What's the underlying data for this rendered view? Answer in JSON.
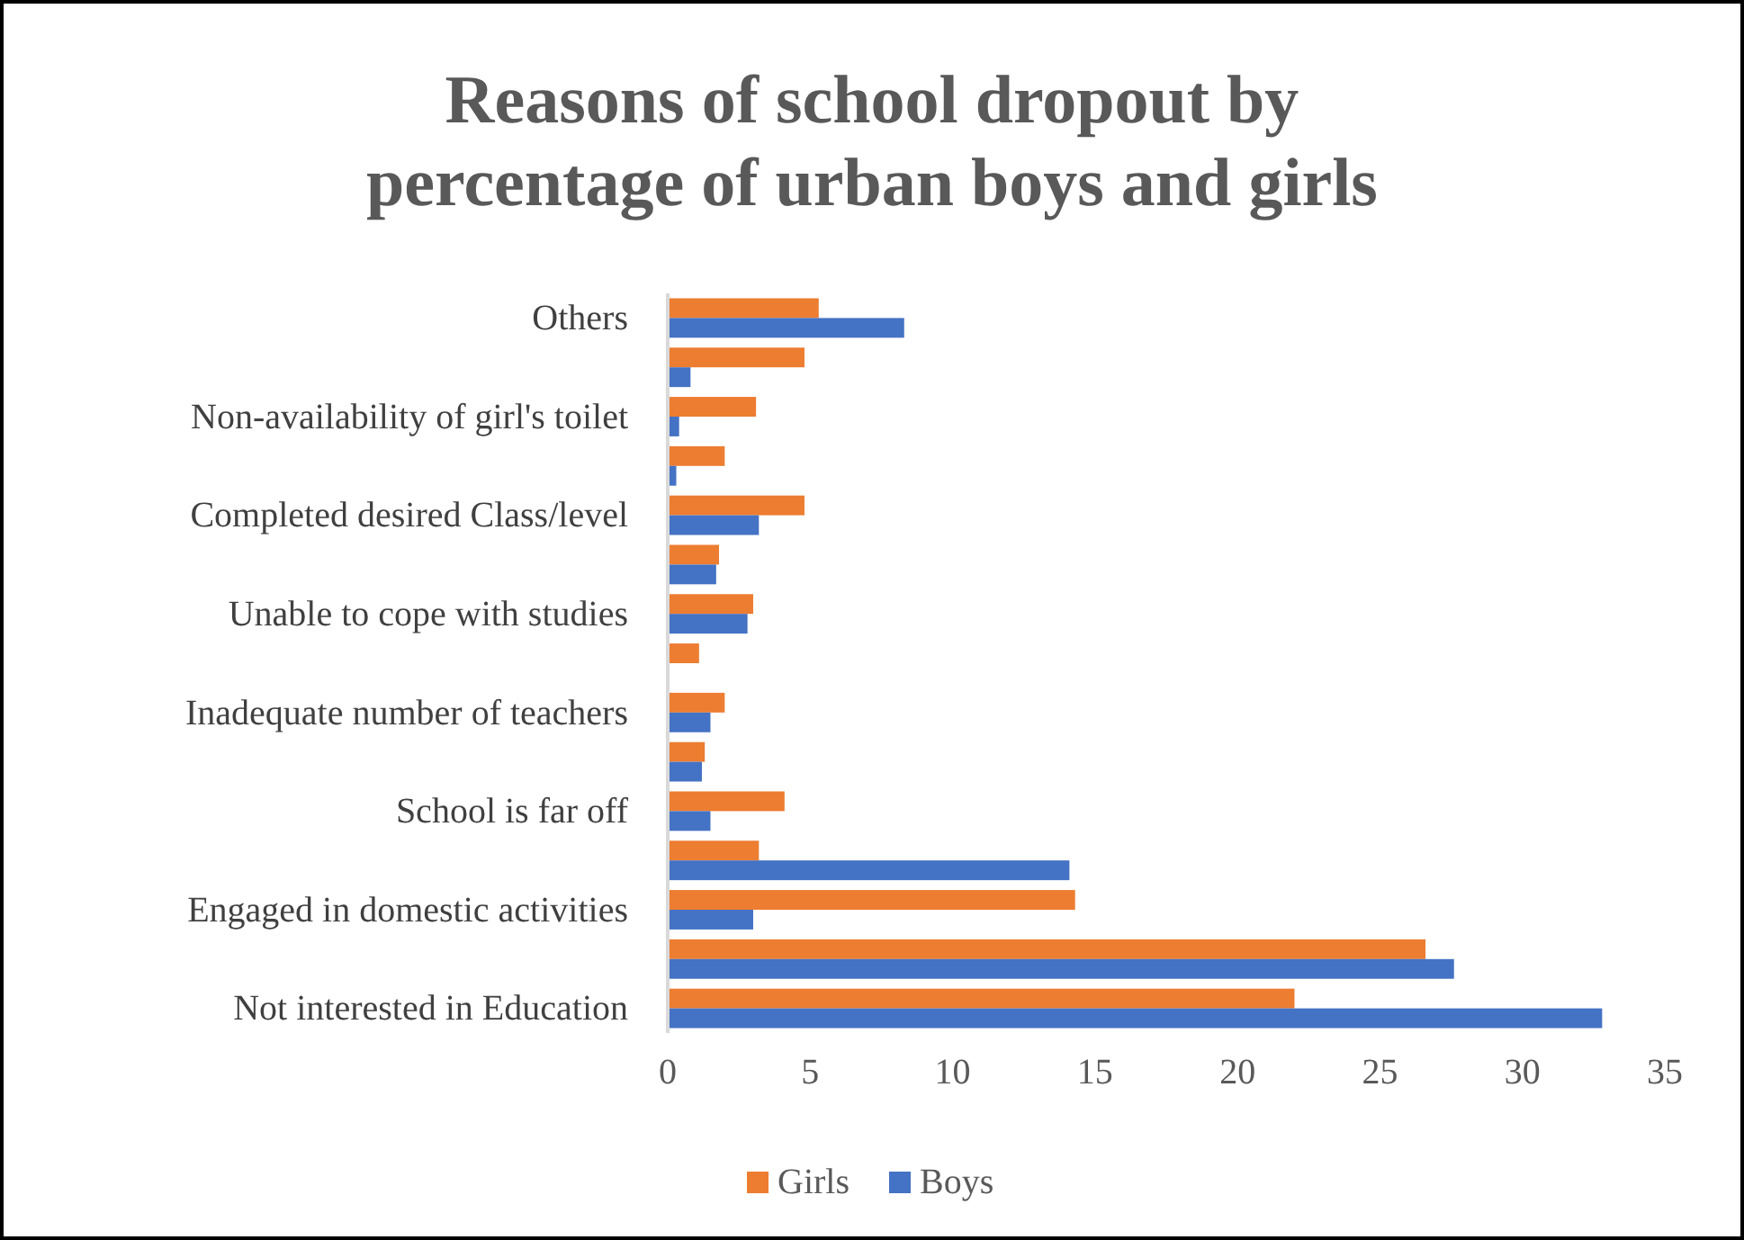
{
  "chart_data": {
    "type": "bar",
    "orientation": "horizontal",
    "title": "Reasons of school dropout by percentage of urban boys and girls",
    "categories": [
      "Others",
      null,
      "Non-availability of girl's toilet",
      null,
      "Completed desired Class/level",
      null,
      "Unable to cope with studies",
      null,
      "Inadequate number of teachers",
      null,
      "School is far off",
      null,
      "Engaged in domestic activities",
      null,
      "Not interested in Education"
    ],
    "series": [
      {
        "name": "Girls",
        "color": "#ed7d31",
        "values": [
          5.3,
          4.8,
          3.1,
          2.0,
          4.8,
          1.8,
          3.0,
          1.1,
          2.0,
          1.3,
          4.1,
          3.2,
          14.3,
          26.6,
          22.0
        ]
      },
      {
        "name": "Boys",
        "color": "#4472c4",
        "values": [
          8.3,
          0.8,
          0.4,
          0.3,
          3.2,
          1.7,
          2.8,
          0,
          1.5,
          1.2,
          1.5,
          14.1,
          3.0,
          27.6,
          32.8
        ]
      }
    ],
    "xlim": [
      0,
      35
    ],
    "xticks": [
      0,
      5,
      10,
      15,
      20,
      25,
      30,
      35
    ],
    "grid": false,
    "legend": "bottom"
  }
}
